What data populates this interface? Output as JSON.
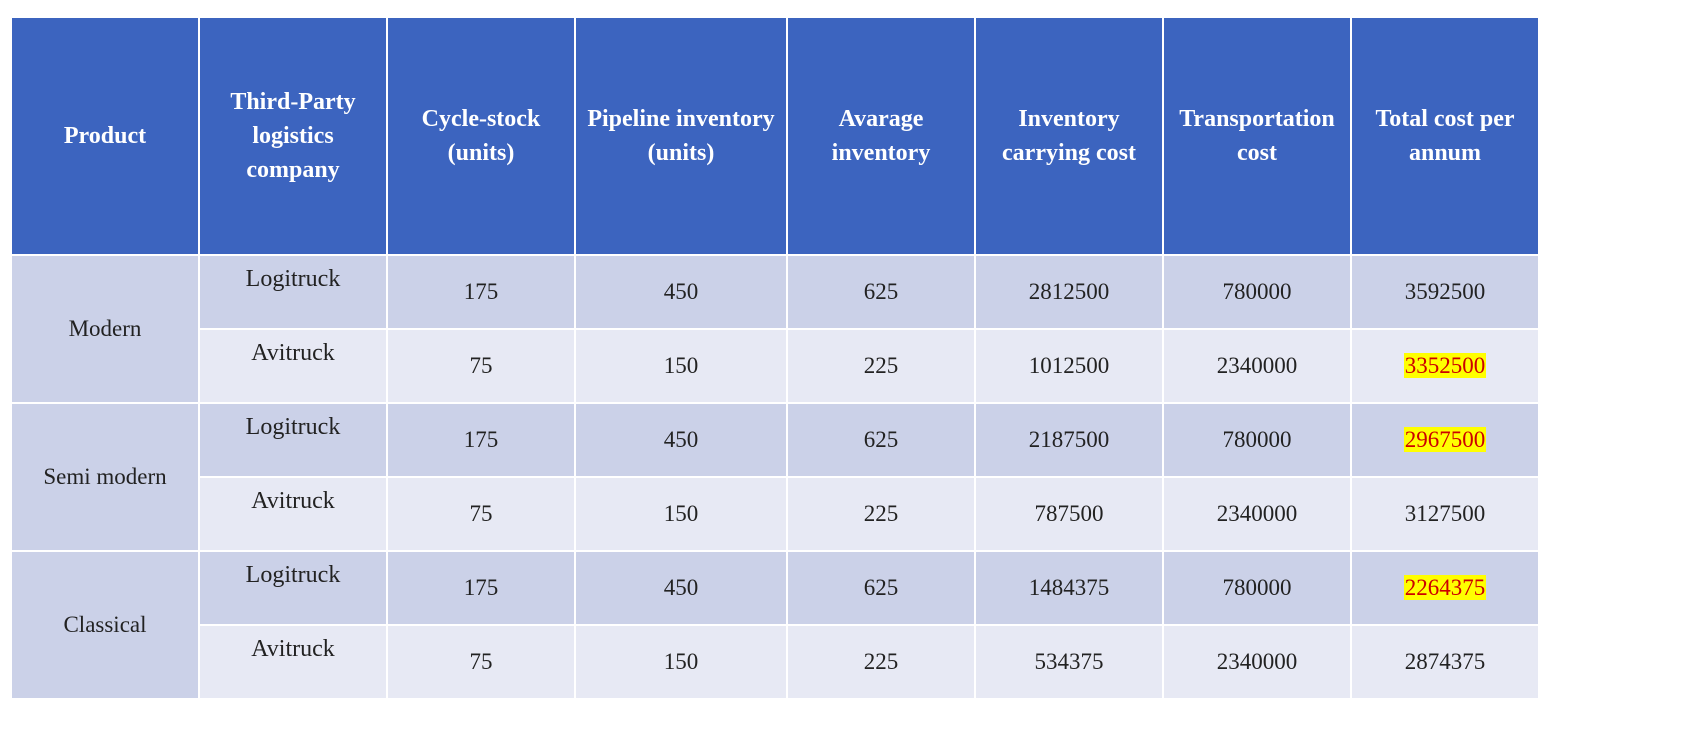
{
  "columns": [
    "Product",
    "Third-Party logistics company",
    "Cycle-stock (units)",
    "Pipeline inventory (units)",
    "Avarage inventory",
    "Inventory carrying cost",
    "Transportation cost",
    "Total cost per annum"
  ],
  "groups": [
    {
      "product": "Modern",
      "rows": [
        {
          "company": "Logitruck",
          "cycle_stock": "175",
          "pipeline": "450",
          "average": "625",
          "carrying_cost": "2812500",
          "transport_cost": "780000",
          "total_cost": "3592500",
          "highlighted": false
        },
        {
          "company": "Avitruck",
          "cycle_stock": "75",
          "pipeline": "150",
          "average": "225",
          "carrying_cost": "1012500",
          "transport_cost": "2340000",
          "total_cost": "3352500",
          "highlighted": true
        }
      ]
    },
    {
      "product": "Semi modern",
      "rows": [
        {
          "company": "Logitruck",
          "cycle_stock": "175",
          "pipeline": "450",
          "average": "625",
          "carrying_cost": "2187500",
          "transport_cost": "780000",
          "total_cost": "2967500",
          "highlighted": true
        },
        {
          "company": "Avitruck",
          "cycle_stock": "75",
          "pipeline": "150",
          "average": "225",
          "carrying_cost": "787500",
          "transport_cost": "2340000",
          "total_cost": "3127500",
          "highlighted": false
        }
      ]
    },
    {
      "product": "Classical",
      "rows": [
        {
          "company": "Logitruck",
          "cycle_stock": "175",
          "pipeline": "450",
          "average": "625",
          "carrying_cost": "1484375",
          "transport_cost": "780000",
          "total_cost": "2264375",
          "highlighted": true
        },
        {
          "company": "Avitruck",
          "cycle_stock": "75",
          "pipeline": "150",
          "average": "225",
          "carrying_cost": "534375",
          "transport_cost": "2340000",
          "total_cost": "2874375",
          "highlighted": false
        }
      ]
    }
  ],
  "colors": {
    "header_bg": "#3c64bf",
    "row_dark": "#cbd1e8",
    "row_light": "#e7e9f4",
    "highlight_bg": "#ffff00",
    "highlight_text": "#cc0000"
  }
}
